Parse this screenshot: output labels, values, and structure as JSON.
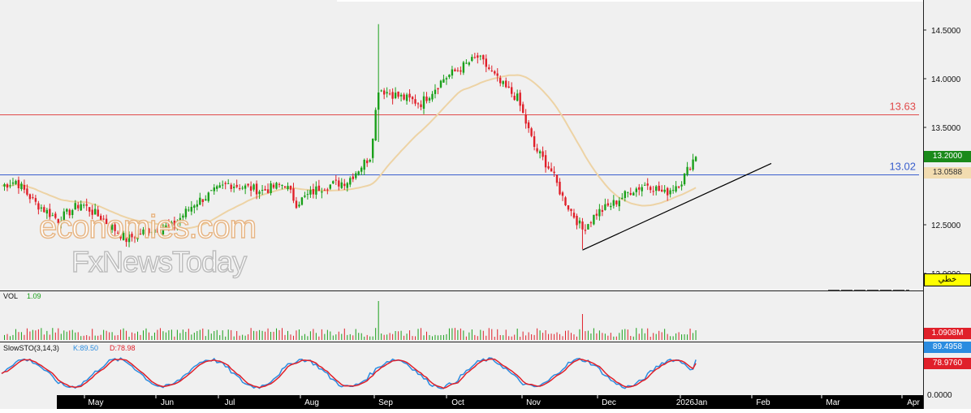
{
  "watermark": {
    "line1": "economies.com",
    "line2": "FxNewsToday"
  },
  "price_panel": {
    "levels": [
      {
        "label": "13.02",
        "value": 13.02,
        "color": "#3a5fcd"
      },
      {
        "label": "13.63",
        "value": 13.63,
        "color": "#e04a4a"
      }
    ],
    "last_price": "13.2000",
    "ma_value": "13.0588",
    "line_style_label": "خطي",
    "y_ticks": [
      "14.5000",
      "14.0000",
      "13.5000",
      "12.5000",
      "12.0000"
    ]
  },
  "volume_panel": {
    "title": "VOL",
    "value": "1.09",
    "scale_label": "1.0908M"
  },
  "sto_panel": {
    "title": "SlowSTO(3,14,3)",
    "k_label": "K:89.50",
    "d_label": "D:78.98",
    "k_box": "89.4958",
    "d_box": "78.9760",
    "zero_label": "0.0000"
  },
  "x_axis": {
    "labels": [
      "May",
      "Jun",
      "Jul",
      "Aug",
      "Sep",
      "Oct",
      "Nov",
      "Dec",
      "2026Jan",
      "Feb",
      "Mar",
      "Apr"
    ]
  },
  "colors": {
    "up": "#1aa01a",
    "down": "#e0202a",
    "ma": "#edd3a5",
    "k": "#2b8ce0",
    "d": "#e0202a",
    "trend": "#000000"
  },
  "chart_data": {
    "type": "candlestick",
    "ylim": [
      12.0,
      14.6
    ],
    "key_points": [
      {
        "x": "Apr 2025",
        "close": 12.88
      },
      {
        "x": "Jun 2025",
        "close": 12.5
      },
      {
        "x": "Jul 2025",
        "close": 12.65
      },
      {
        "x": "Aug 2025",
        "close": 12.9
      },
      {
        "x": "Sep 2025",
        "close": 12.95
      },
      {
        "x": "Sep 2025 (spike)",
        "high": 14.56
      },
      {
        "x": "Oct 2025",
        "close": 13.9
      },
      {
        "x": "Oct 2025 (peak)",
        "close": 14.25
      },
      {
        "x": "Nov 2025",
        "close": 13.15
      },
      {
        "x": "Dec 2025 (low)",
        "low": 12.25
      },
      {
        "x": "Dec 2025",
        "close": 12.9
      },
      {
        "x": "Jan 2026",
        "close": 13.2
      }
    ],
    "horizontal_levels": [
      13.02,
      13.63
    ],
    "last_price": 13.2,
    "moving_average_last": 13.0588,
    "volume_last": 1.09,
    "slow_sto": {
      "k": 89.5,
      "d": 78.98
    }
  }
}
